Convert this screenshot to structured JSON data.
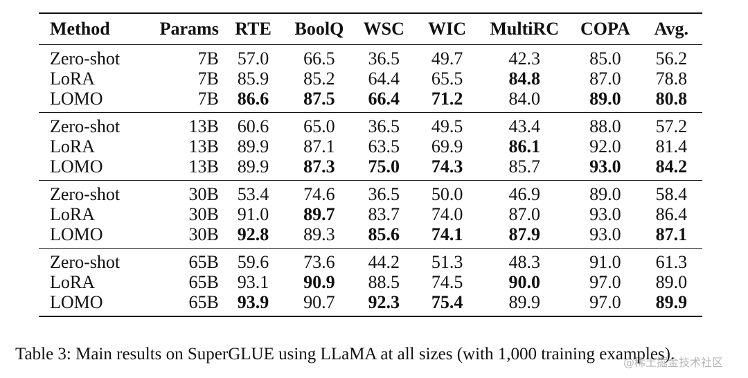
{
  "table": {
    "headers": [
      "Method",
      "Params",
      "RTE",
      "BoolQ",
      "WSC",
      "WIC",
      "MultiRC",
      "COPA",
      "Avg."
    ],
    "groups": [
      {
        "rows": [
          {
            "cells": [
              "Zero-shot",
              "7B",
              "57.0",
              "66.5",
              "36.5",
              "49.7",
              "42.3",
              "85.0",
              "56.2"
            ],
            "bold": []
          },
          {
            "cells": [
              "LoRA",
              "7B",
              "85.9",
              "85.2",
              "64.4",
              "65.5",
              "84.8",
              "87.0",
              "78.8"
            ],
            "bold": [
              6
            ]
          },
          {
            "cells": [
              "LOMO",
              "7B",
              "86.6",
              "87.5",
              "66.4",
              "71.2",
              "84.0",
              "89.0",
              "80.8"
            ],
            "bold": [
              2,
              3,
              4,
              5,
              7,
              8
            ]
          }
        ]
      },
      {
        "rows": [
          {
            "cells": [
              "Zero-shot",
              "13B",
              "60.6",
              "65.0",
              "36.5",
              "49.5",
              "43.4",
              "88.0",
              "57.2"
            ],
            "bold": []
          },
          {
            "cells": [
              "LoRA",
              "13B",
              "89.9",
              "87.1",
              "63.5",
              "69.9",
              "86.1",
              "92.0",
              "81.4"
            ],
            "bold": [
              6
            ]
          },
          {
            "cells": [
              "LOMO",
              "13B",
              "89.9",
              "87.3",
              "75.0",
              "74.3",
              "85.7",
              "93.0",
              "84.2"
            ],
            "bold": [
              3,
              4,
              5,
              7,
              8
            ]
          }
        ]
      },
      {
        "rows": [
          {
            "cells": [
              "Zero-shot",
              "30B",
              "53.4",
              "74.6",
              "36.5",
              "50.0",
              "46.9",
              "89.0",
              "58.4"
            ],
            "bold": []
          },
          {
            "cells": [
              "LoRA",
              "30B",
              "91.0",
              "89.7",
              "83.7",
              "74.0",
              "87.0",
              "93.0",
              "86.4"
            ],
            "bold": [
              3
            ]
          },
          {
            "cells": [
              "LOMO",
              "30B",
              "92.8",
              "89.3",
              "85.6",
              "74.1",
              "87.9",
              "93.0",
              "87.1"
            ],
            "bold": [
              2,
              4,
              5,
              6,
              8
            ]
          }
        ]
      },
      {
        "rows": [
          {
            "cells": [
              "Zero-shot",
              "65B",
              "59.6",
              "73.6",
              "44.2",
              "51.3",
              "48.3",
              "91.0",
              "61.3"
            ],
            "bold": []
          },
          {
            "cells": [
              "LoRA",
              "65B",
              "93.1",
              "90.9",
              "88.5",
              "74.5",
              "90.0",
              "97.0",
              "89.0"
            ],
            "bold": [
              3,
              6
            ]
          },
          {
            "cells": [
              "LOMO",
              "65B",
              "93.9",
              "90.7",
              "92.3",
              "75.4",
              "89.9",
              "97.0",
              "89.9"
            ],
            "bold": [
              2,
              4,
              5,
              8
            ]
          }
        ]
      }
    ]
  },
  "caption": "Table 3: Main results on SuperGLUE using LLaMA at all sizes (with 1,000 training examples).",
  "watermark": "@稀土掘金技术社区"
}
